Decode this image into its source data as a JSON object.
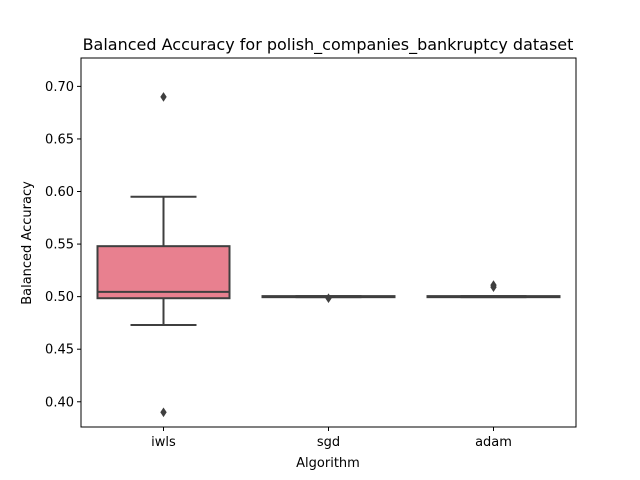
{
  "chart_data": {
    "type": "box",
    "title": "Balanced Accuracy for polish_companies_bankruptcy dataset",
    "xlabel": "Algorithm",
    "ylabel": "Balanced Accuracy",
    "ylim": [
      0.376,
      0.727
    ],
    "yticks": [
      0.4,
      0.45,
      0.5,
      0.55,
      0.6,
      0.65,
      0.7
    ],
    "ytick_labels": [
      "0.40",
      "0.45",
      "0.50",
      "0.55",
      "0.60",
      "0.65",
      "0.70"
    ],
    "grid": false,
    "legend": "none",
    "categories": [
      "iwls",
      "sgd",
      "adam"
    ],
    "boxes": [
      {
        "category": "iwls",
        "whisker_low": 0.473,
        "q1": 0.4985,
        "median": 0.5045,
        "q3": 0.548,
        "whisker_high": 0.595,
        "fliers": [
          0.69,
          0.39
        ],
        "color": "#e8808f"
      },
      {
        "category": "sgd",
        "whisker_low": 0.4995,
        "q1": 0.4995,
        "median": 0.5,
        "q3": 0.5005,
        "whisker_high": 0.5005,
        "fliers": [
          0.4985
        ],
        "color": "#7d9d3f"
      },
      {
        "category": "adam",
        "whisker_low": 0.4995,
        "q1": 0.4995,
        "median": 0.5,
        "q3": 0.5005,
        "whisker_high": 0.5005,
        "fliers": [
          0.511,
          0.509
        ],
        "color": "#3ba3ec"
      }
    ],
    "line_color": "#3f3f3f"
  }
}
